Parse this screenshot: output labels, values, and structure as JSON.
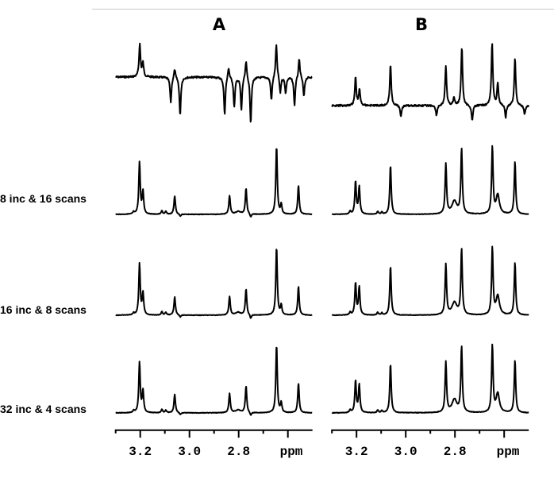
{
  "colors": {
    "trace": "#000000",
    "frame_line": "#c8c8c8",
    "background": "#ffffff"
  },
  "row_labels": [
    "8 inc & 16 scans",
    "16 inc & 8 scans",
    "32 inc & 4 scans"
  ],
  "chart_data": [
    {
      "type": "line",
      "title": "A",
      "xlabel": "ppm",
      "xlim": [
        3.3,
        2.5
      ],
      "x_reversed": true,
      "major_ticks": [
        3.2,
        3.0,
        2.8,
        2.6
      ],
      "minor_ticks": [
        3.1,
        2.9,
        2.7
      ],
      "tick_labels": [
        "3.2",
        "3.0",
        "2.8"
      ],
      "grid": false,
      "spectra": [
        {
          "row": "reference",
          "noise": true,
          "peaks": [
            [
              3.202,
              48
            ],
            [
              3.189,
              20
            ],
            [
              3.076,
              -37
            ],
            [
              3.06,
              14
            ],
            [
              3.038,
              -56
            ],
            [
              2.857,
              -55
            ],
            [
              2.841,
              17
            ],
            [
              2.818,
              -44
            ],
            [
              2.789,
              -48
            ],
            [
              2.77,
              26
            ],
            [
              2.751,
              -67
            ],
            [
              2.667,
              -35
            ],
            [
              2.647,
              49
            ],
            [
              2.631,
              -24
            ],
            [
              2.609,
              -23
            ],
            [
              2.573,
              -42
            ],
            [
              2.554,
              28
            ],
            [
              2.535,
              -29
            ]
          ]
        },
        {
          "row": "8 inc & 16 scans",
          "peaks": [
            [
              3.227,
              3
            ],
            [
              3.203,
              76
            ],
            [
              3.189,
              33
            ],
            [
              3.112,
              5
            ],
            [
              3.096,
              4
            ],
            [
              3.06,
              27
            ],
            [
              3.037,
              -3
            ],
            [
              2.837,
              27
            ],
            [
              2.802,
              4,
              0.012
            ],
            [
              2.77,
              38
            ],
            [
              2.751,
              -5
            ],
            [
              2.646,
              100
            ],
            [
              2.627,
              14
            ],
            [
              2.557,
              42
            ]
          ]
        },
        {
          "row": "16 inc & 8 scans",
          "peaks": [
            [
              3.227,
              3
            ],
            [
              3.203,
              75
            ],
            [
              3.189,
              32
            ],
            [
              3.112,
              5
            ],
            [
              3.096,
              4
            ],
            [
              3.06,
              27
            ],
            [
              3.037,
              -3
            ],
            [
              2.837,
              27
            ],
            [
              2.802,
              4,
              0.012
            ],
            [
              2.77,
              38
            ],
            [
              2.751,
              -6
            ],
            [
              2.646,
              100
            ],
            [
              2.627,
              14
            ],
            [
              2.557,
              42
            ]
          ]
        },
        {
          "row": "32 inc & 4 scans",
          "peaks": [
            [
              3.227,
              3
            ],
            [
              3.203,
              74
            ],
            [
              3.189,
              32
            ],
            [
              3.112,
              5
            ],
            [
              3.096,
              4
            ],
            [
              3.06,
              27
            ],
            [
              3.037,
              -3
            ],
            [
              2.837,
              28
            ],
            [
              2.802,
              4,
              0.012
            ],
            [
              2.77,
              39
            ],
            [
              2.751,
              -5
            ],
            [
              2.646,
              100
            ],
            [
              2.627,
              14
            ],
            [
              2.557,
              43
            ]
          ]
        }
      ]
    },
    {
      "type": "line",
      "title": "B",
      "xlabel": "ppm",
      "xlim": [
        3.3,
        2.5
      ],
      "x_reversed": true,
      "major_ticks": [
        3.2,
        3.0,
        2.8,
        2.6
      ],
      "minor_ticks": [
        3.1,
        2.9,
        2.7
      ],
      "tick_labels": [
        "3.2",
        "3.0",
        "2.8"
      ],
      "grid": false,
      "spectra": [
        {
          "row": "reference",
          "noise": true,
          "peaks": [
            [
              3.204,
              41
            ],
            [
              3.188,
              23
            ],
            [
              3.062,
              60
            ],
            [
              3.02,
              -16
            ],
            [
              2.875,
              -15
            ],
            [
              2.837,
              58
            ],
            [
              2.804,
              12
            ],
            [
              2.772,
              86
            ],
            [
              2.73,
              -23
            ],
            [
              2.649,
              91
            ],
            [
              2.626,
              33
            ],
            [
              2.594,
              -19
            ],
            [
              2.556,
              70
            ],
            [
              2.517,
              -14
            ]
          ]
        },
        {
          "row": "8 inc & 16 scans",
          "peaks": [
            [
              3.226,
              4
            ],
            [
              3.204,
              48
            ],
            [
              3.189,
              40
            ],
            [
              3.114,
              4
            ],
            [
              3.097,
              3
            ],
            [
              3.062,
              72
            ],
            [
              2.837,
              73
            ],
            [
              2.802,
              19,
              0.012
            ],
            [
              2.773,
              95
            ],
            [
              2.648,
              98
            ],
            [
              2.626,
              28,
              0.008
            ],
            [
              2.556,
              77
            ]
          ]
        },
        {
          "row": "16 inc & 8 scans",
          "peaks": [
            [
              3.226,
              4
            ],
            [
              3.204,
              47
            ],
            [
              3.189,
              41
            ],
            [
              3.114,
              4
            ],
            [
              3.097,
              3
            ],
            [
              3.062,
              72
            ],
            [
              2.837,
              74
            ],
            [
              2.802,
              18,
              0.012
            ],
            [
              2.773,
              96
            ],
            [
              2.648,
              98
            ],
            [
              2.626,
              28,
              0.008
            ],
            [
              2.556,
              77
            ]
          ]
        },
        {
          "row": "32 inc & 4 scans",
          "peaks": [
            [
              3.226,
              4
            ],
            [
              3.204,
              47
            ],
            [
              3.189,
              41
            ],
            [
              3.114,
              4
            ],
            [
              3.097,
              3
            ],
            [
              3.062,
              72
            ],
            [
              2.837,
              74
            ],
            [
              2.802,
              19,
              0.012
            ],
            [
              2.773,
              96
            ],
            [
              2.648,
              98
            ],
            [
              2.626,
              28,
              0.008
            ],
            [
              2.556,
              77
            ]
          ]
        }
      ]
    }
  ]
}
